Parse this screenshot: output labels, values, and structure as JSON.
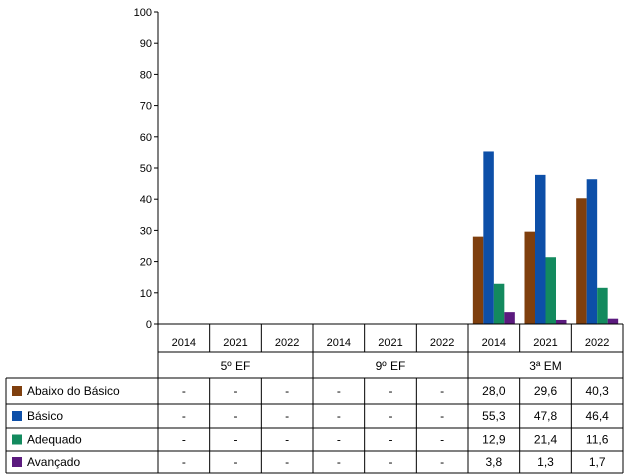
{
  "chart_data": {
    "type": "bar",
    "title": "",
    "xlabel": "",
    "ylabel": "",
    "ylim": [
      0,
      100
    ],
    "yticks": [
      "0",
      "10",
      "20",
      "30",
      "40",
      "50",
      "60",
      "70",
      "80",
      "90",
      "100"
    ],
    "groups": [
      {
        "name": "5º EF",
        "years": [
          "2014",
          "2021",
          "2022"
        ]
      },
      {
        "name": "9º EF",
        "years": [
          "2014",
          "2021",
          "2022"
        ]
      },
      {
        "name": "3ª EM",
        "years": [
          "2014",
          "2021",
          "2022"
        ]
      }
    ],
    "series": [
      {
        "name": "Abaixo do Básico",
        "color": "#7f3f0e",
        "values": [
          null,
          null,
          null,
          null,
          null,
          null,
          28.0,
          29.6,
          40.3
        ],
        "labels": [
          "-",
          "-",
          "-",
          "-",
          "-",
          "-",
          "28,0",
          "29,6",
          "40,3"
        ]
      },
      {
        "name": "Básico",
        "color": "#0d4fa8",
        "values": [
          null,
          null,
          null,
          null,
          null,
          null,
          55.3,
          47.8,
          46.4
        ],
        "labels": [
          "-",
          "-",
          "-",
          "-",
          "-",
          "-",
          "55,3",
          "47,8",
          "46,4"
        ]
      },
      {
        "name": "Adequado",
        "color": "#138a5e",
        "values": [
          null,
          null,
          null,
          null,
          null,
          null,
          12.9,
          21.4,
          11.6
        ],
        "labels": [
          "-",
          "-",
          "-",
          "-",
          "-",
          "-",
          "12,9",
          "21,4",
          "11,6"
        ]
      },
      {
        "name": "Avançado",
        "color": "#5b1a7e",
        "values": [
          null,
          null,
          null,
          null,
          null,
          null,
          3.8,
          1.3,
          1.7
        ],
        "labels": [
          "-",
          "-",
          "-",
          "-",
          "-",
          "-",
          "3,8",
          "1,3",
          "1,7"
        ]
      }
    ]
  }
}
